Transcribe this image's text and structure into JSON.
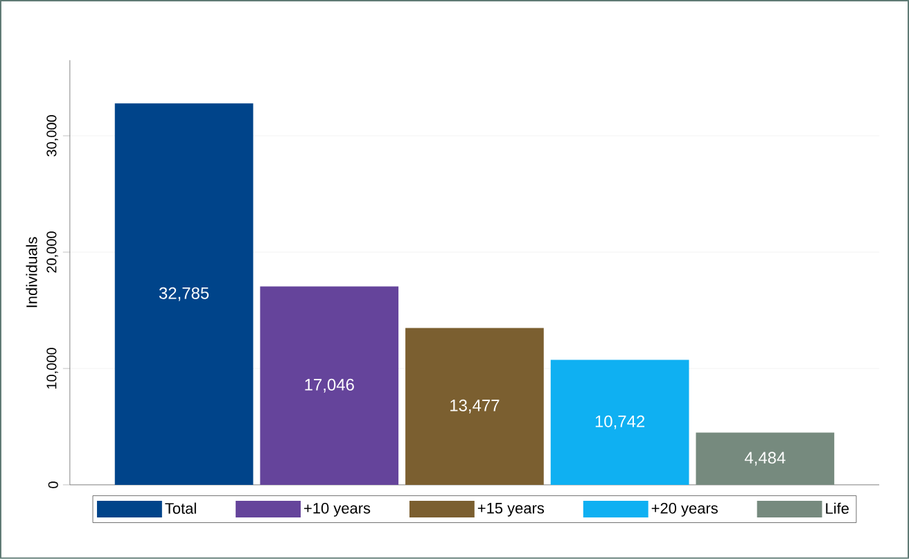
{
  "chart_data": {
    "type": "bar",
    "ylabel": "Individuals",
    "categories": [
      null
    ],
    "series": [
      {
        "name": "Total",
        "color": "#00448a",
        "values": [
          32785
        ],
        "value_labels": [
          "32,785"
        ]
      },
      {
        "name": "+10 years",
        "color": "#65449b",
        "values": [
          17046
        ],
        "value_labels": [
          "17,046"
        ]
      },
      {
        "name": "+15 years",
        "color": "#7b5f30",
        "values": [
          13477
        ],
        "value_labels": [
          "13,477"
        ]
      },
      {
        "name": "+20 years",
        "color": "#0fb0f2",
        "values": [
          10742
        ],
        "value_labels": [
          "10,742"
        ]
      },
      {
        "name": "Life",
        "color": "#768a7e",
        "values": [
          4484
        ],
        "value_labels": [
          "4,484"
        ]
      }
    ],
    "ylim": [
      0,
      36500
    ],
    "yticks": [
      {
        "value": 0,
        "label": "0"
      },
      {
        "value": 10000,
        "label": "10,000"
      },
      {
        "value": 20000,
        "label": "20,000"
      },
      {
        "value": 30000,
        "label": "30,000"
      }
    ],
    "grid": "y",
    "legend": "bottom"
  }
}
